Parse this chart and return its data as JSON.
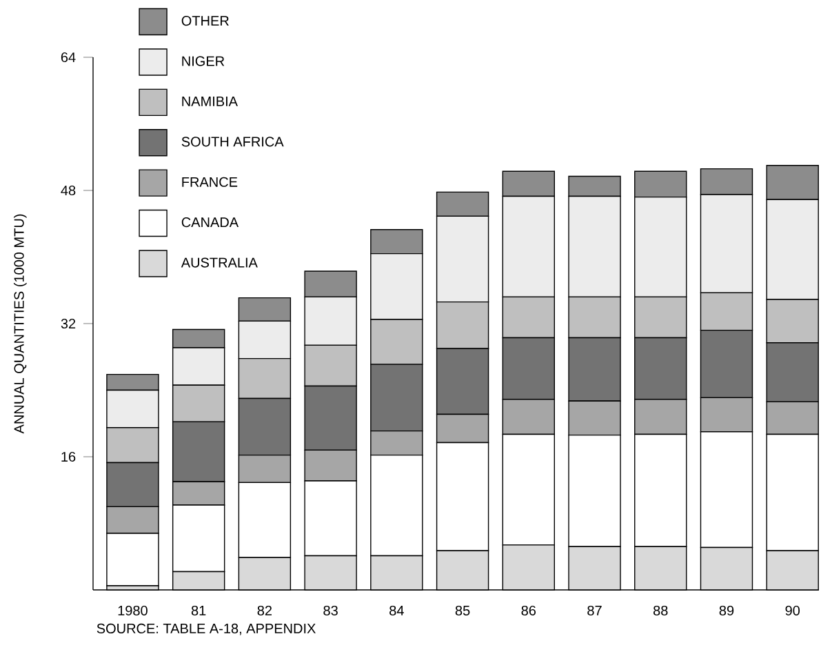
{
  "chart_data": {
    "type": "bar",
    "stacked": true,
    "ylabel": "ANNUAL QUANTITIES (1000 MTU)",
    "categories": [
      "1980",
      "81",
      "82",
      "83",
      "84",
      "85",
      "86",
      "87",
      "88",
      "89",
      "90"
    ],
    "ylim": [
      0,
      64
    ],
    "yticks": [
      16,
      32,
      48,
      64
    ],
    "legend": "top left",
    "annotations": [
      "SOURCE: TABLE A-18, APPENDIX"
    ],
    "series": [
      {
        "name": "AUSTRALIA",
        "color": "#d9d9d9",
        "values": [
          0.5,
          2.2,
          3.9,
          4.1,
          4.1,
          4.7,
          5.4,
          5.2,
          5.2,
          5.1,
          4.7
        ]
      },
      {
        "name": "CANADA",
        "color": "#ffffff",
        "values": [
          6.3,
          8.0,
          9.0,
          9.0,
          12.1,
          13.0,
          13.3,
          13.4,
          13.5,
          13.9,
          14.0
        ]
      },
      {
        "name": "FRANCE",
        "color": "#a6a6a6",
        "values": [
          3.2,
          2.8,
          3.3,
          3.7,
          2.9,
          3.4,
          4.2,
          4.1,
          4.2,
          4.1,
          3.9
        ]
      },
      {
        "name": "SOUTH AFRICA",
        "color": "#737373",
        "values": [
          5.3,
          7.2,
          6.8,
          7.7,
          8.0,
          7.9,
          7.4,
          7.6,
          7.4,
          8.1,
          7.1
        ]
      },
      {
        "name": "NAMIBIA",
        "color": "#bfbfbf",
        "values": [
          4.2,
          4.4,
          4.8,
          4.9,
          5.4,
          5.6,
          4.9,
          4.9,
          4.9,
          4.5,
          5.2
        ]
      },
      {
        "name": "NIGER",
        "color": "#ececec",
        "values": [
          4.5,
          4.5,
          4.5,
          5.8,
          7.9,
          10.3,
          12.1,
          12.1,
          12.0,
          11.8,
          12.0
        ]
      },
      {
        "name": "OTHER",
        "color": "#8c8c8c",
        "values": [
          1.9,
          2.2,
          2.8,
          3.1,
          2.9,
          2.9,
          3.0,
          2.4,
          3.1,
          3.1,
          4.1
        ]
      }
    ]
  }
}
